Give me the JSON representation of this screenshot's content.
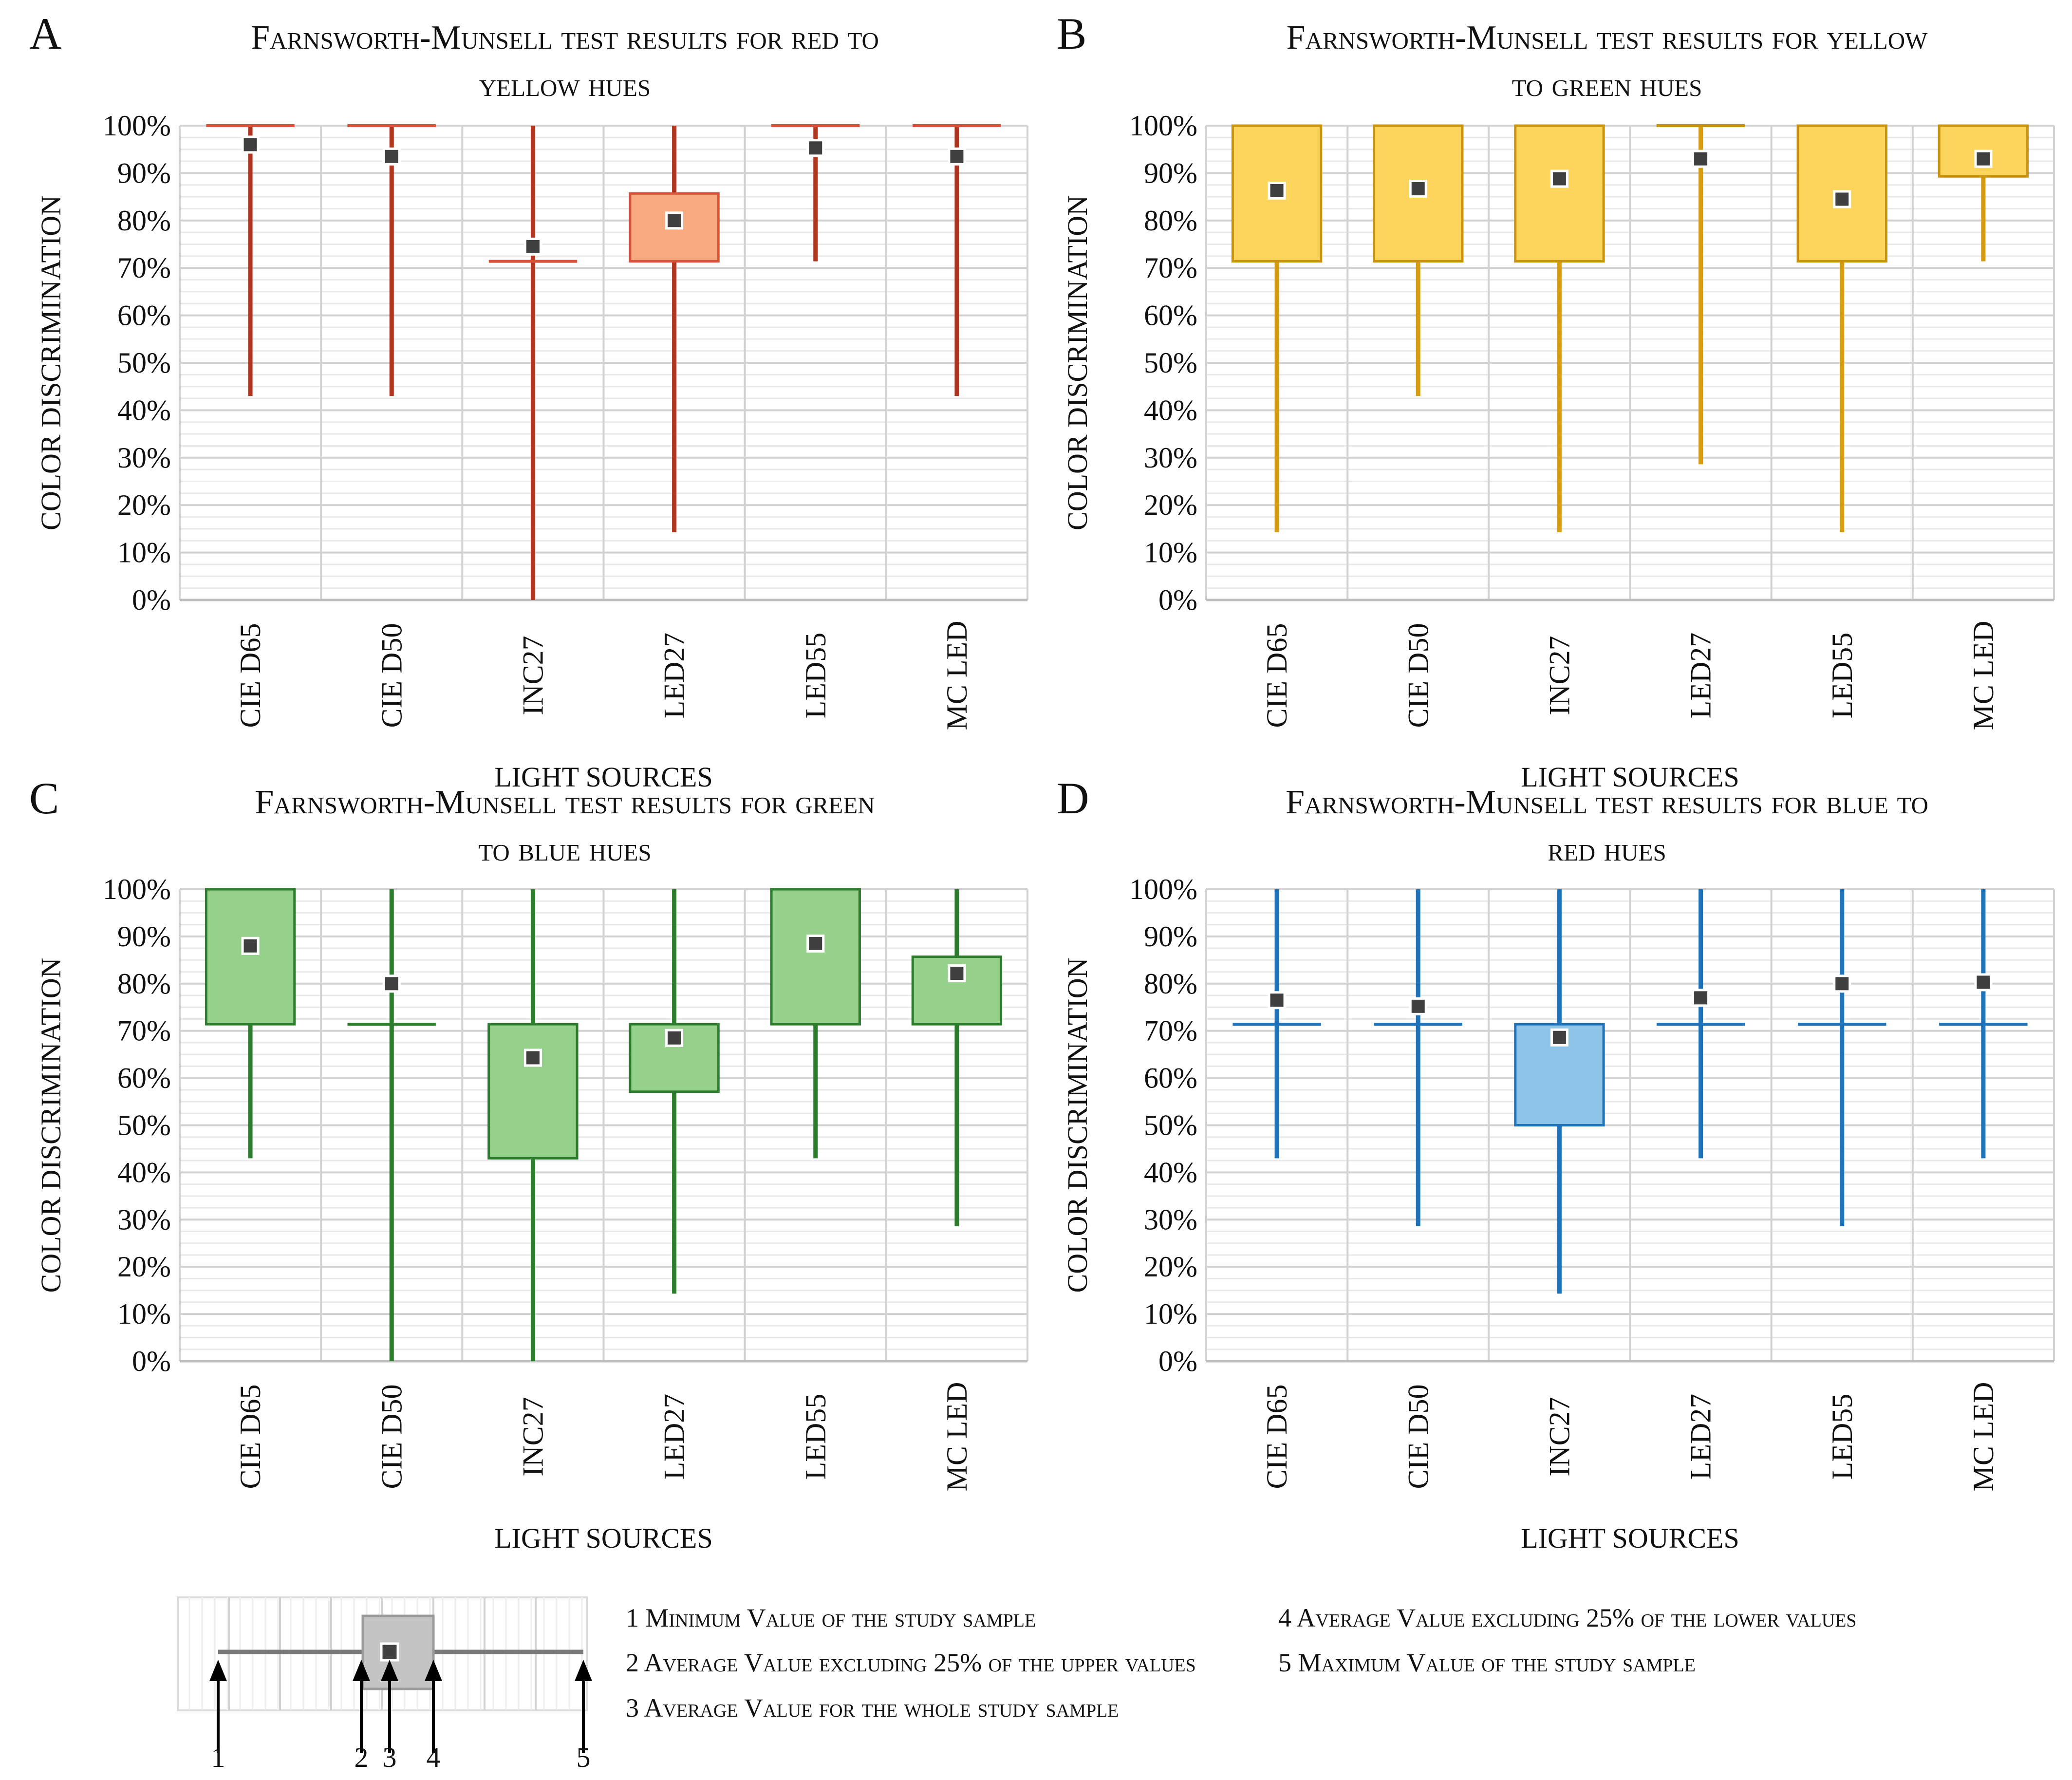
{
  "chart_data": [
    {
      "type": "boxplot",
      "panel_label": "A",
      "title_line1": "Farnsworth-Munsell test results for red to",
      "title_line2": "yellow hues",
      "xlabel": "LIGHT SOURCES",
      "ylabel": "COLOR DISCRIMINATION",
      "ylim": [
        0,
        100
      ],
      "yticks": [
        "0%",
        "10%",
        "20%",
        "30%",
        "40%",
        "50%",
        "60%",
        "70%",
        "80%",
        "90%",
        "100%"
      ],
      "colors": {
        "line": "#b0361f",
        "fill": "#f7aa7e",
        "box_edge": "#d8523a"
      },
      "categories": [
        "CIE D65",
        "CIE D50",
        "INC27",
        "LED27",
        "LED55",
        "MC LED"
      ],
      "series": [
        {
          "name": "CIE D65",
          "min": 43,
          "q1": 100,
          "q3": 100,
          "max": 100,
          "mean": 96
        },
        {
          "name": "CIE D50",
          "min": 43,
          "q1": 100,
          "q3": 100,
          "max": 100,
          "mean": 93.5
        },
        {
          "name": "INC27",
          "min": 0,
          "q1": 71.4,
          "q3": 71.4,
          "max": 100,
          "mean": 74.5
        },
        {
          "name": "LED27",
          "min": 14.3,
          "q1": 71.4,
          "q3": 85.7,
          "max": 100,
          "mean": 80
        },
        {
          "name": "LED55",
          "min": 71.4,
          "q1": 100,
          "q3": 100,
          "max": 100,
          "mean": 95.3
        },
        {
          "name": "MC LED",
          "min": 43,
          "q1": 100,
          "q3": 100,
          "max": 100,
          "mean": 93.5
        }
      ]
    },
    {
      "type": "boxplot",
      "panel_label": "B",
      "title_line1": "Farnsworth-Munsell test results for yellow",
      "title_line2": "to green hues",
      "xlabel": "LIGHT SOURCES",
      "ylabel": "COLOR DISCRIMINATION",
      "ylim": [
        0,
        100
      ],
      "yticks": [
        "0%",
        "10%",
        "20%",
        "30%",
        "40%",
        "50%",
        "60%",
        "70%",
        "80%",
        "90%",
        "100%"
      ],
      "colors": {
        "line": "#d69c12",
        "fill": "#fdd55c",
        "box_edge": "#c8940f"
      },
      "categories": [
        "CIE D65",
        "CIE D50",
        "INC27",
        "LED27",
        "LED55",
        "MC LED"
      ],
      "series": [
        {
          "name": "CIE D65",
          "min": 14.3,
          "q1": 71.4,
          "q3": 100,
          "max": 100,
          "mean": 86.3
        },
        {
          "name": "CIE D50",
          "min": 43,
          "q1": 71.4,
          "q3": 100,
          "max": 100,
          "mean": 86.7
        },
        {
          "name": "INC27",
          "min": 14.3,
          "q1": 71.4,
          "q3": 100,
          "max": 100,
          "mean": 88.8
        },
        {
          "name": "LED27",
          "min": 28.6,
          "q1": 100,
          "q3": 100,
          "max": 100,
          "mean": 93
        },
        {
          "name": "LED55",
          "min": 14.3,
          "q1": 71.4,
          "q3": 100,
          "max": 100,
          "mean": 84.5
        },
        {
          "name": "MC LED",
          "min": 71.4,
          "q1": 89.3,
          "q3": 100,
          "max": 100,
          "mean": 93
        }
      ]
    },
    {
      "type": "boxplot",
      "panel_label": "C",
      "title_line1": "Farnsworth-Munsell test results for green",
      "title_line2": "to blue hues",
      "xlabel": "LIGHT SOURCES",
      "ylabel": "COLOR DISCRIMINATION",
      "ylim": [
        0,
        100
      ],
      "yticks": [
        "0%",
        "10%",
        "20%",
        "30%",
        "40%",
        "50%",
        "60%",
        "70%",
        "80%",
        "90%",
        "100%"
      ],
      "colors": {
        "line": "#2e7d2e",
        "fill": "#96d18b",
        "box_edge": "#2e7d2e"
      },
      "categories": [
        "CIE D65",
        "CIE D50",
        "INC27",
        "LED27",
        "LED55",
        "MC LED"
      ],
      "series": [
        {
          "name": "CIE D65",
          "min": 43,
          "q1": 71.4,
          "q3": 100,
          "max": 100,
          "mean": 88
        },
        {
          "name": "CIE D50",
          "min": 0,
          "q1": 71.4,
          "q3": 71.4,
          "max": 100,
          "mean": 80
        },
        {
          "name": "INC27",
          "min": 0,
          "q1": 43,
          "q3": 71.4,
          "max": 100,
          "mean": 64.3
        },
        {
          "name": "LED27",
          "min": 14.3,
          "q1": 57.1,
          "q3": 71.4,
          "max": 100,
          "mean": 68.5
        },
        {
          "name": "LED55",
          "min": 43,
          "q1": 71.4,
          "q3": 100,
          "max": 100,
          "mean": 88.5
        },
        {
          "name": "MC LED",
          "min": 28.6,
          "q1": 71.4,
          "q3": 85.7,
          "max": 100,
          "mean": 82.2
        }
      ]
    },
    {
      "type": "boxplot",
      "panel_label": "D",
      "title_line1": "Farnsworth-Munsell test results for blue to",
      "title_line2": "red hues",
      "xlabel": "LIGHT SOURCES",
      "ylabel": "COLOR DISCRIMINATION",
      "ylim": [
        0,
        100
      ],
      "yticks": [
        "0%",
        "10%",
        "20%",
        "30%",
        "40%",
        "50%",
        "60%",
        "70%",
        "80%",
        "90%",
        "100%"
      ],
      "colors": {
        "line": "#1f72b8",
        "fill": "#8dc4e8",
        "box_edge": "#1f72b8"
      },
      "categories": [
        "CIE D65",
        "CIE D50",
        "INC27",
        "LED27",
        "LED55",
        "MC LED"
      ],
      "series": [
        {
          "name": "CIE D65",
          "min": 43,
          "q1": 71.4,
          "q3": 71.4,
          "max": 100,
          "mean": 76.5
        },
        {
          "name": "CIE D50",
          "min": 28.6,
          "q1": 71.4,
          "q3": 71.4,
          "max": 100,
          "mean": 75.2
        },
        {
          "name": "INC27",
          "min": 14.3,
          "q1": 50,
          "q3": 71.4,
          "max": 100,
          "mean": 68.6
        },
        {
          "name": "LED27",
          "min": 43,
          "q1": 71.4,
          "q3": 71.4,
          "max": 100,
          "mean": 77
        },
        {
          "name": "LED55",
          "min": 28.6,
          "q1": 71.4,
          "q3": 71.4,
          "max": 100,
          "mean": 80
        },
        {
          "name": "MC LED",
          "min": 43,
          "q1": 71.4,
          "q3": 71.4,
          "max": 100,
          "mean": 80.3
        }
      ]
    }
  ],
  "legend": {
    "numbers": [
      "1",
      "2",
      "3",
      "4",
      "5"
    ],
    "items": [
      "1 Minimum Value of the study sample",
      "2 Average Value excluding 25% of the upper values",
      "3 Average Value for the whole study sample",
      "4 Average Value excluding 25% of the lower values",
      "5 Maximum Value of the study sample"
    ],
    "colors": {
      "line": "#7a7a7a",
      "fill": "#c4c4c4",
      "edge": "#9a9a9a"
    }
  }
}
